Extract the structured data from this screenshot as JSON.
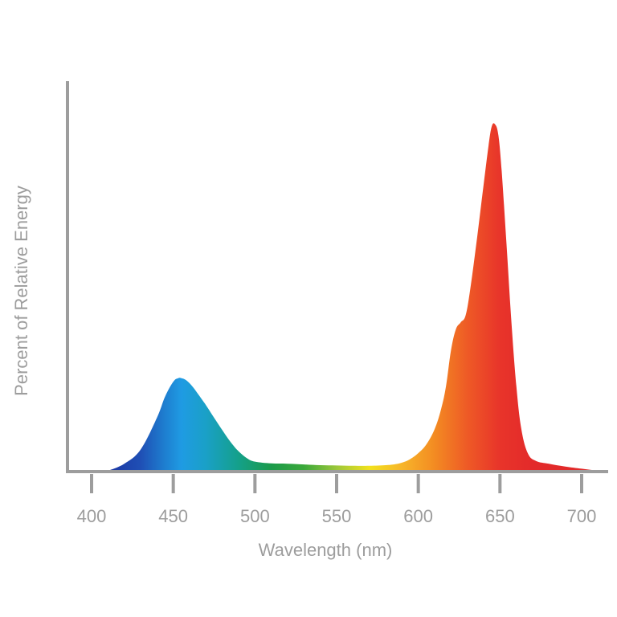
{
  "chart_data": {
    "type": "area",
    "title": "",
    "xlabel": "Wavelength (nm)",
    "ylabel": "Percent of Relative Energy",
    "xlim": [
      380,
      720
    ],
    "ylim": [
      0,
      1
    ],
    "x_ticks": [
      400,
      450,
      500,
      550,
      600,
      650,
      700
    ],
    "y_ticks_shown": false,
    "grid": false,
    "legend": "none",
    "fill_gradient": "visible spectrum (blue to red)",
    "series": [
      {
        "x": [
          410,
          420,
          430,
          440,
          445,
          450,
          453,
          455,
          458,
          462,
          466,
          470,
          475,
          480,
          485,
          490,
          495,
          500,
          510,
          520,
          530,
          540,
          550,
          560,
          570,
          580,
          585,
          590,
          595,
          600,
          605,
          610,
          614,
          617,
          620,
          623,
          626,
          629,
          632,
          636,
          640,
          643,
          645,
          647,
          649,
          651,
          654,
          657,
          660,
          663,
          667,
          672,
          680,
          690,
          700,
          710
        ],
        "y": [
          0,
          0.02,
          0.06,
          0.15,
          0.21,
          0.252,
          0.262,
          0.262,
          0.256,
          0.237,
          0.212,
          0.186,
          0.15,
          0.115,
          0.082,
          0.055,
          0.036,
          0.026,
          0.021,
          0.02,
          0.018,
          0.016,
          0.015,
          0.014,
          0.014,
          0.016,
          0.018,
          0.023,
          0.033,
          0.05,
          0.075,
          0.118,
          0.175,
          0.24,
          0.34,
          0.4,
          0.42,
          0.44,
          0.52,
          0.66,
          0.81,
          0.92,
          0.975,
          0.98,
          0.95,
          0.85,
          0.64,
          0.42,
          0.24,
          0.12,
          0.05,
          0.028,
          0.02,
          0.012,
          0.006,
          0
        ]
      }
    ]
  }
}
